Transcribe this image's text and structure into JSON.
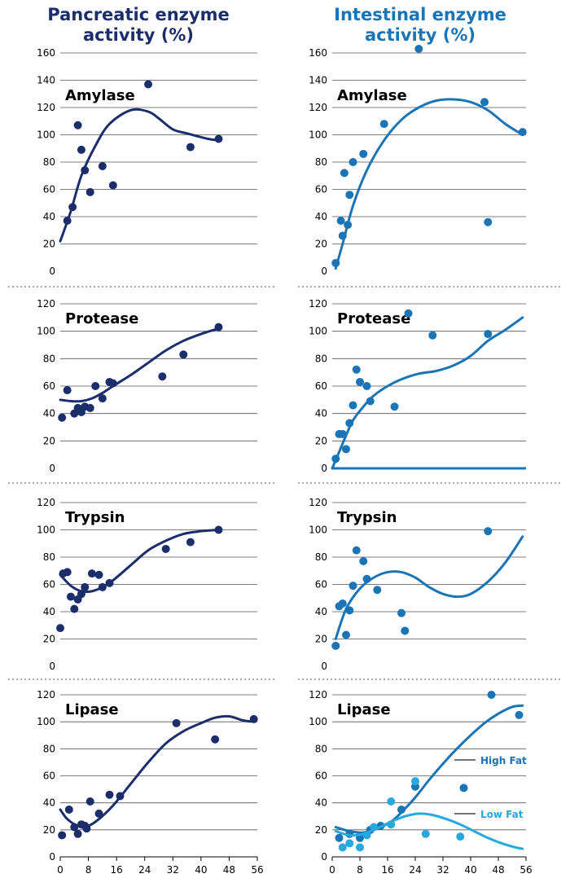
{
  "titles": {
    "left": "Pancreatic enzyme activity (%)",
    "right": "Intestinal enzyme activity (%)"
  },
  "colors": {
    "pancreatic": "#1c2d6b",
    "intestinal": "#1a74b5",
    "low_fat": "#29a8e0",
    "grid": "#555555"
  },
  "chart_data": [
    {
      "type": "scatter",
      "panel": "pancreatic-amylase",
      "title": "Amylase",
      "xlim": [
        0,
        56
      ],
      "ylim": [
        0,
        160
      ],
      "yticks": [
        0,
        20,
        40,
        60,
        80,
        100,
        120,
        140,
        160
      ],
      "xticks": [],
      "series": [
        {
          "points": [
            [
              2,
              37
            ],
            [
              3.5,
              47
            ],
            [
              5,
              107
            ],
            [
              6,
              89
            ],
            [
              7,
              74
            ],
            [
              8.5,
              58
            ],
            [
              12,
              77
            ],
            [
              15,
              63
            ],
            [
              25,
              137
            ],
            [
              37,
              91
            ],
            [
              45,
              97
            ]
          ],
          "trend": [
            [
              0,
              22
            ],
            [
              3,
              44
            ],
            [
              6,
              70
            ],
            [
              10,
              92
            ],
            [
              14,
              108
            ],
            [
              20,
              118
            ],
            [
              25,
              117
            ],
            [
              28,
              112
            ],
            [
              32,
              104
            ],
            [
              36,
              101
            ],
            [
              42,
              97
            ],
            [
              45,
              96
            ]
          ]
        }
      ]
    },
    {
      "type": "scatter",
      "panel": "pancreatic-protease",
      "title": "Protease",
      "xlim": [
        0,
        56
      ],
      "ylim": [
        0,
        120
      ],
      "yticks": [
        0,
        20,
        40,
        60,
        80,
        100,
        120
      ],
      "xticks": [],
      "series": [
        {
          "points": [
            [
              0.5,
              37
            ],
            [
              2,
              57
            ],
            [
              4,
              40
            ],
            [
              5,
              44
            ],
            [
              6,
              41
            ],
            [
              7,
              45
            ],
            [
              8.5,
              44
            ],
            [
              10,
              60
            ],
            [
              12,
              51
            ],
            [
              14,
              63
            ],
            [
              15,
              62
            ],
            [
              29,
              67
            ],
            [
              35,
              83
            ],
            [
              45,
              103
            ]
          ],
          "trend": [
            [
              0,
              50
            ],
            [
              3,
              49
            ],
            [
              6,
              49
            ],
            [
              9,
              51
            ],
            [
              12,
              55
            ],
            [
              15,
              60
            ],
            [
              20,
              68
            ],
            [
              25,
              77
            ],
            [
              30,
              86
            ],
            [
              35,
              93
            ],
            [
              40,
              98
            ],
            [
              45,
              102
            ]
          ]
        }
      ]
    },
    {
      "type": "scatter",
      "panel": "pancreatic-trypsin",
      "title": "Trypsin",
      "xlim": [
        0,
        56
      ],
      "ylim": [
        0,
        120
      ],
      "yticks": [
        0,
        20,
        40,
        60,
        80,
        100,
        120
      ],
      "xticks": [],
      "series": [
        {
          "points": [
            [
              0,
              28
            ],
            [
              0.8,
              68
            ],
            [
              2,
              69
            ],
            [
              3,
              51
            ],
            [
              4,
              42
            ],
            [
              5,
              49
            ],
            [
              6,
              53
            ],
            [
              7,
              58
            ],
            [
              9,
              68
            ],
            [
              11,
              67
            ],
            [
              12,
              58
            ],
            [
              14,
              61
            ],
            [
              30,
              86
            ],
            [
              37,
              91
            ],
            [
              45,
              100
            ]
          ],
          "trend": [
            [
              0,
              67
            ],
            [
              3,
              59
            ],
            [
              6,
              55
            ],
            [
              9,
              55
            ],
            [
              12,
              58
            ],
            [
              15,
              63
            ],
            [
              20,
              74
            ],
            [
              25,
              85
            ],
            [
              30,
              92
            ],
            [
              35,
              97
            ],
            [
              40,
              99
            ],
            [
              45,
              100
            ]
          ]
        }
      ]
    },
    {
      "type": "scatter",
      "panel": "pancreatic-lipase",
      "title": "Lipase",
      "xlim": [
        0,
        56
      ],
      "ylim": [
        0,
        120
      ],
      "yticks": [
        0,
        20,
        40,
        60,
        80,
        100,
        120
      ],
      "xticks": [
        0,
        8,
        16,
        24,
        32,
        40,
        48,
        56
      ],
      "series": [
        {
          "points": [
            [
              0.5,
              16
            ],
            [
              2.5,
              35
            ],
            [
              4,
              22
            ],
            [
              5,
              17
            ],
            [
              6,
              24
            ],
            [
              7,
              23
            ],
            [
              7.5,
              21
            ],
            [
              8.5,
              41
            ],
            [
              11,
              32
            ],
            [
              14,
              46
            ],
            [
              17,
              45
            ],
            [
              33,
              99
            ],
            [
              44,
              87
            ],
            [
              55,
              102
            ]
          ],
          "trend": [
            [
              0,
              35
            ],
            [
              2,
              28
            ],
            [
              5,
              23
            ],
            [
              8,
              23
            ],
            [
              11,
              28
            ],
            [
              15,
              38
            ],
            [
              20,
              54
            ],
            [
              25,
              70
            ],
            [
              30,
              84
            ],
            [
              35,
              93
            ],
            [
              40,
              99
            ],
            [
              44,
              103
            ],
            [
              48,
              104
            ],
            [
              52,
              101
            ],
            [
              55,
              100
            ]
          ]
        }
      ]
    },
    {
      "type": "scatter",
      "panel": "intestinal-amylase",
      "title": "Amylase",
      "xlim": [
        0,
        56
      ],
      "ylim": [
        0,
        160
      ],
      "yticks": [
        0,
        20,
        40,
        60,
        80,
        100,
        120,
        140,
        160
      ],
      "xticks": [],
      "series": [
        {
          "points": [
            [
              1,
              6
            ],
            [
              2.5,
              37
            ],
            [
              3,
              26
            ],
            [
              3.5,
              72
            ],
            [
              4.5,
              34
            ],
            [
              5,
              56
            ],
            [
              6,
              80
            ],
            [
              9,
              86
            ],
            [
              15,
              108
            ],
            [
              25,
              163
            ],
            [
              44,
              124
            ],
            [
              45,
              36
            ],
            [
              55,
              102
            ]
          ],
          "trend": [
            [
              1,
              2
            ],
            [
              3,
              20
            ],
            [
              6,
              48
            ],
            [
              10,
              74
            ],
            [
              15,
              96
            ],
            [
              20,
              111
            ],
            [
              25,
              120
            ],
            [
              30,
              125
            ],
            [
              35,
              126
            ],
            [
              40,
              124
            ],
            [
              45,
              118
            ],
            [
              50,
              108
            ],
            [
              55,
              100
            ]
          ]
        }
      ]
    },
    {
      "type": "scatter",
      "panel": "intestinal-protease",
      "title": "Protease",
      "xlim": [
        0,
        56
      ],
      "ylim": [
        0,
        120
      ],
      "yticks": [
        0,
        20,
        40,
        60,
        80,
        100,
        120
      ],
      "xticks": [],
      "series": [
        {
          "points": [
            [
              1,
              7
            ],
            [
              2,
              25
            ],
            [
              3,
              25
            ],
            [
              4,
              14
            ],
            [
              5,
              33
            ],
            [
              6,
              46
            ],
            [
              7,
              72
            ],
            [
              8,
              63
            ],
            [
              10,
              60
            ],
            [
              11,
              49
            ],
            [
              18,
              45
            ],
            [
              22,
              113
            ],
            [
              29,
              97
            ],
            [
              45,
              98
            ]
          ],
          "trend": [
            [
              0,
              0
            ],
            [
              2,
              12
            ],
            [
              4,
              24
            ],
            [
              6,
              35
            ],
            [
              9,
              45
            ],
            [
              12,
              53
            ],
            [
              16,
              60
            ],
            [
              20,
              65
            ],
            [
              25,
              69
            ],
            [
              30,
              71
            ],
            [
              35,
              75
            ],
            [
              40,
              82
            ],
            [
              45,
              93
            ],
            [
              50,
              101
            ],
            [
              55,
              110
            ]
          ],
          "baseline": [
            [
              0,
              0
            ],
            [
              56,
              0
            ]
          ]
        }
      ]
    },
    {
      "type": "scatter",
      "panel": "intestinal-trypsin",
      "title": "Trypsin",
      "xlim": [
        0,
        56
      ],
      "ylim": [
        0,
        120
      ],
      "yticks": [
        0,
        20,
        40,
        60,
        80,
        100,
        120
      ],
      "xticks": [],
      "series": [
        {
          "points": [
            [
              1,
              15
            ],
            [
              2,
              44
            ],
            [
              3,
              46
            ],
            [
              4,
              23
            ],
            [
              5,
              41
            ],
            [
              6,
              59
            ],
            [
              7,
              85
            ],
            [
              9,
              77
            ],
            [
              10,
              64
            ],
            [
              13,
              56
            ],
            [
              20,
              39
            ],
            [
              21,
              26
            ],
            [
              45,
              99
            ]
          ],
          "trend": [
            [
              1,
              20
            ],
            [
              4,
              42
            ],
            [
              8,
              57
            ],
            [
              12,
              65
            ],
            [
              16,
              69
            ],
            [
              20,
              69
            ],
            [
              24,
              65
            ],
            [
              28,
              58
            ],
            [
              32,
              53
            ],
            [
              36,
              51
            ],
            [
              40,
              53
            ],
            [
              45,
              62
            ],
            [
              50,
              76
            ],
            [
              55,
              95
            ]
          ]
        }
      ]
    },
    {
      "type": "scatter",
      "panel": "intestinal-lipase",
      "title": "Lipase",
      "xlim": [
        0,
        56
      ],
      "ylim": [
        0,
        120
      ],
      "yticks": [
        0,
        20,
        40,
        60,
        80,
        100,
        120
      ],
      "xticks": [
        0,
        8,
        16,
        24,
        32,
        40,
        48,
        56
      ],
      "series": [
        {
          "name": "High Fat",
          "points": [
            [
              2,
              14
            ],
            [
              5,
              17
            ],
            [
              8,
              14
            ],
            [
              11,
              20
            ],
            [
              14,
              23
            ],
            [
              20,
              35
            ],
            [
              24,
              52
            ],
            [
              38,
              51
            ],
            [
              46,
              120
            ],
            [
              54,
              105
            ]
          ],
          "trend": [
            [
              1,
              22
            ],
            [
              5,
              19
            ],
            [
              9,
              18
            ],
            [
              13,
              21
            ],
            [
              17,
              26
            ],
            [
              20,
              33
            ],
            [
              24,
              44
            ],
            [
              28,
              57
            ],
            [
              32,
              69
            ],
            [
              36,
              80
            ],
            [
              40,
              90
            ],
            [
              44,
              99
            ],
            [
              48,
              106
            ],
            [
              52,
              111
            ],
            [
              55,
              112
            ]
          ]
        },
        {
          "name": "Low Fat",
          "points": [
            [
              3,
              7
            ],
            [
              5,
              10
            ],
            [
              8,
              7
            ],
            [
              10,
              16
            ],
            [
              12,
              22
            ],
            [
              17,
              41
            ],
            [
              17,
              24
            ],
            [
              24,
              56
            ],
            [
              27,
              17
            ],
            [
              37,
              15
            ]
          ],
          "trend": [
            [
              1,
              19
            ],
            [
              5,
              16
            ],
            [
              9,
              17
            ],
            [
              13,
              21
            ],
            [
              17,
              26
            ],
            [
              21,
              30
            ],
            [
              25,
              32
            ],
            [
              29,
              31
            ],
            [
              33,
              28
            ],
            [
              37,
              24
            ],
            [
              41,
              19
            ],
            [
              45,
              14
            ],
            [
              49,
              10
            ],
            [
              53,
              7
            ],
            [
              55,
              6
            ]
          ]
        }
      ]
    }
  ]
}
